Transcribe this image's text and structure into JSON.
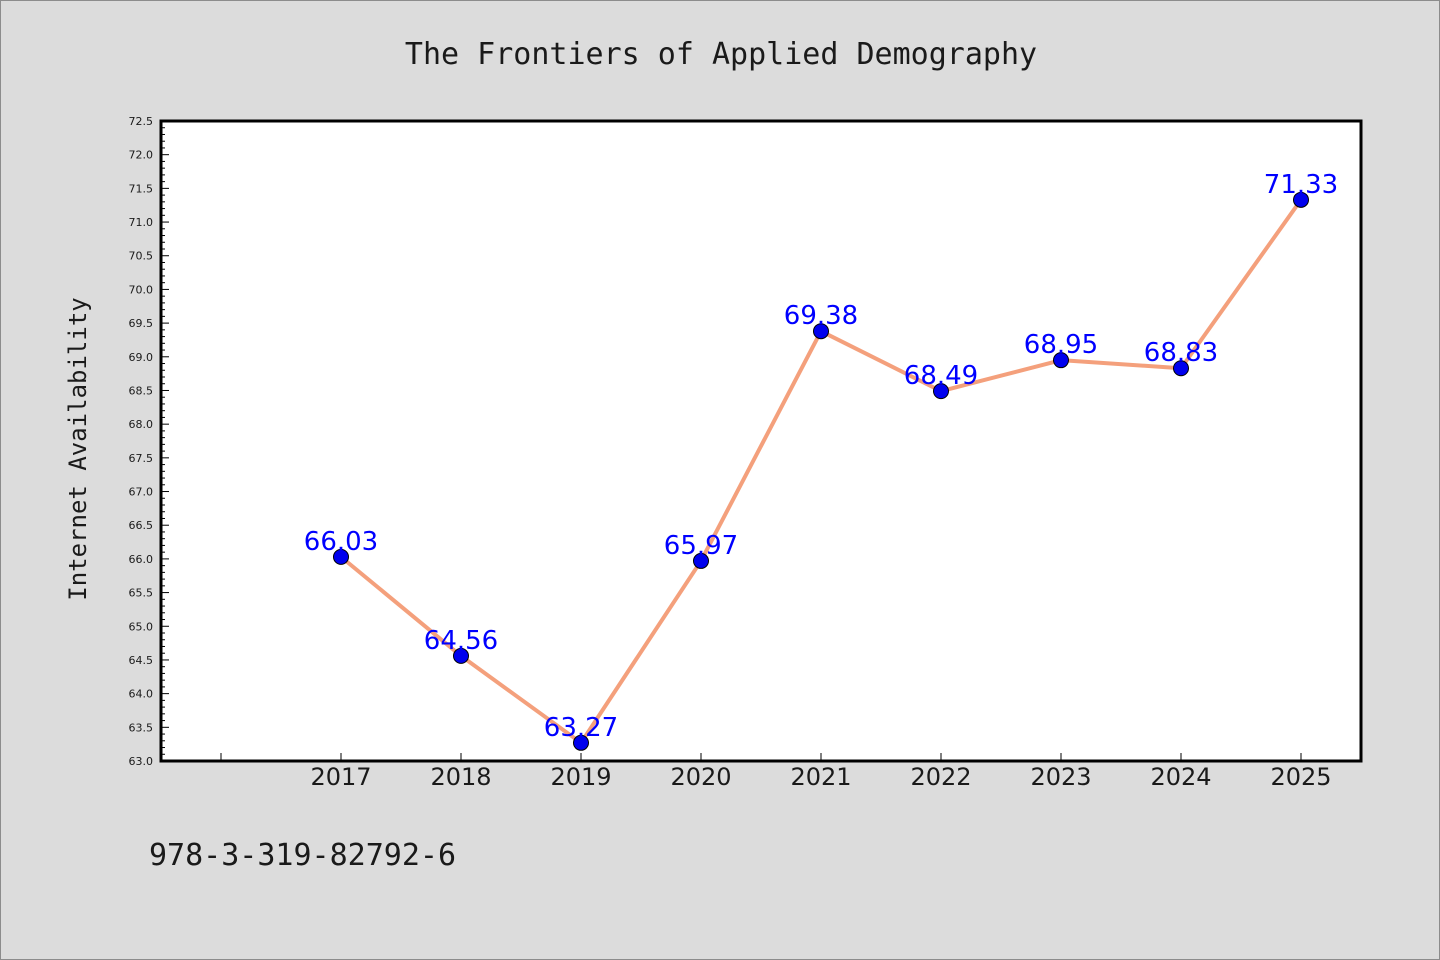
{
  "chart_data": {
    "type": "line",
    "title": "The Frontiers of Applied Demography",
    "xlabel": "",
    "ylabel": "Internet Availability",
    "categories": [
      "2017",
      "2018",
      "2019",
      "2020",
      "2021",
      "2022",
      "2023",
      "2024",
      "2025"
    ],
    "series": [
      {
        "values": [
          66.03,
          64.56,
          63.27,
          65.97,
          69.38,
          68.49,
          68.95,
          68.83,
          71.33
        ]
      }
    ],
    "data_labels": [
      "66.03",
      "64.56",
      "63.27",
      "65.97",
      "69.38",
      "68.49",
      "68.95",
      "68.83",
      "71.33"
    ],
    "ylim": [
      63.0,
      72.5
    ],
    "yticks": [
      "63.0",
      "63.5",
      "64.0",
      "64.5",
      "65.0",
      "65.5",
      "66.0",
      "66.5",
      "67.0",
      "67.5",
      "68.0",
      "68.5",
      "69.0",
      "69.5",
      "70.0",
      "70.5",
      "71.0",
      "71.5",
      "72.0",
      "72.5"
    ],
    "grid": false,
    "legend": "none",
    "colors": {
      "line": "#f4a07c",
      "marker": "#0000ee",
      "label": "#0000ff",
      "plot_bg": "#ffffff",
      "page_bg": "#dcdcdc"
    }
  },
  "footer": {
    "isbn": "978-3-319-82792-6"
  }
}
